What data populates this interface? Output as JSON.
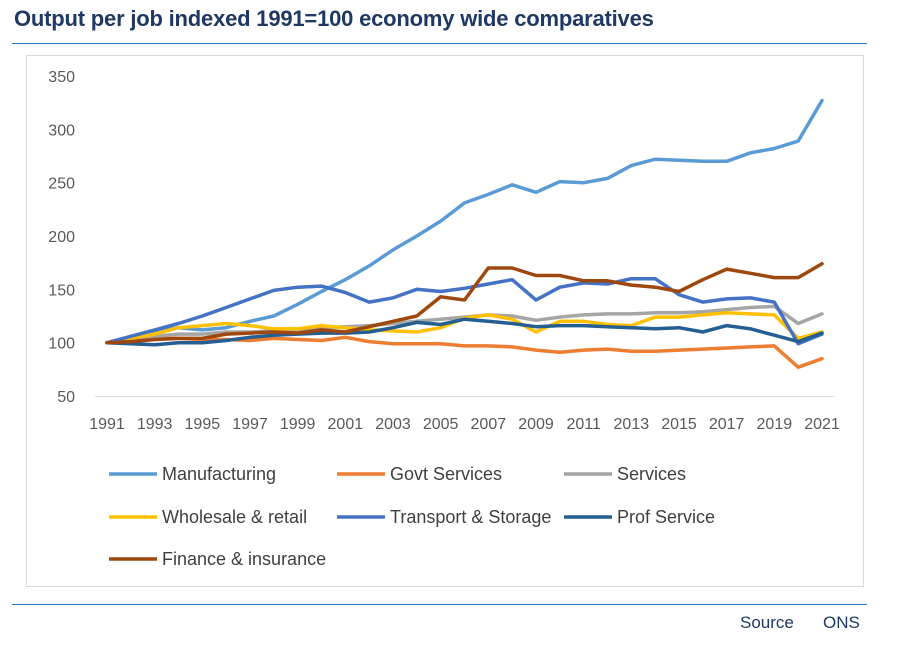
{
  "page": {
    "title": "Output per job indexed 1991=100 economy wide comparatives",
    "source_label": "Source",
    "source_value": "ONS"
  },
  "chart_data": {
    "type": "line",
    "title": "",
    "xlabel": "",
    "ylabel": "",
    "x": [
      1991,
      1992,
      1993,
      1994,
      1995,
      1996,
      1997,
      1998,
      1999,
      2000,
      2001,
      2002,
      2003,
      2004,
      2005,
      2006,
      2007,
      2008,
      2009,
      2010,
      2011,
      2012,
      2013,
      2014,
      2015,
      2016,
      2017,
      2018,
      2019,
      2020,
      2021
    ],
    "x_tick_labels": [
      "1991",
      "1993",
      "1995",
      "1997",
      "1999",
      "2001",
      "2003",
      "2005",
      "2007",
      "2009",
      "2011",
      "2013",
      "2015",
      "2017",
      "2019",
      "2021"
    ],
    "ylim": [
      50,
      350
    ],
    "y_ticks": [
      50,
      100,
      150,
      200,
      250,
      300,
      350
    ],
    "grid": false,
    "legend_position": "bottom",
    "series": [
      {
        "name": "Manufacturing",
        "color": "#5b9bd5",
        "values": [
          100,
          105,
          110,
          114,
          112,
          114,
          120,
          125,
          136,
          148,
          159,
          172,
          187,
          200,
          214,
          231,
          239,
          248,
          241,
          251,
          250,
          254,
          266,
          272,
          271,
          270,
          270,
          278,
          282,
          289,
          327
        ]
      },
      {
        "name": "Govt Services",
        "color": "#ed7d31",
        "values": [
          100,
          102,
          104,
          104,
          103,
          103,
          102,
          104,
          103,
          102,
          105,
          101,
          99,
          99,
          99,
          97,
          97,
          96,
          93,
          91,
          93,
          94,
          92,
          92,
          93,
          94,
          95,
          96,
          97,
          77,
          85
        ]
      },
      {
        "name": "Services",
        "color": "#a5a5a5",
        "values": [
          100,
          103,
          106,
          108,
          108,
          110,
          110,
          111,
          112,
          114,
          115,
          116,
          118,
          120,
          122,
          124,
          126,
          125,
          121,
          124,
          126,
          127,
          127,
          128,
          128,
          129,
          131,
          133,
          134,
          118,
          127
        ]
      },
      {
        "name": "Wholesale & retail",
        "color": "#ffc000",
        "values": [
          100,
          104,
          108,
          114,
          116,
          118,
          116,
          113,
          113,
          116,
          114,
          112,
          111,
          110,
          114,
          123,
          126,
          122,
          110,
          120,
          120,
          117,
          116,
          124,
          124,
          126,
          128,
          127,
          126,
          104,
          110
        ]
      },
      {
        "name": "Transport & Storage",
        "color": "#4472c4",
        "values": [
          100,
          106,
          112,
          118,
          125,
          133,
          141,
          149,
          152,
          153,
          147,
          138,
          142,
          150,
          148,
          151,
          155,
          159,
          140,
          152,
          156,
          155,
          160,
          160,
          145,
          138,
          141,
          142,
          138,
          99,
          108
        ]
      },
      {
        "name": "Prof Service",
        "color": "#255e91",
        "values": [
          100,
          99,
          98,
          100,
          100,
          102,
          105,
          107,
          108,
          109,
          109,
          110,
          114,
          119,
          117,
          122,
          120,
          118,
          115,
          116,
          116,
          115,
          114,
          113,
          114,
          110,
          116,
          113,
          107,
          101,
          109
        ]
      },
      {
        "name": "Finance & insurance",
        "color": "#9e480e",
        "values": [
          100,
          101,
          103,
          104,
          104,
          108,
          109,
          110,
          109,
          112,
          110,
          115,
          120,
          125,
          143,
          140,
          170,
          170,
          163,
          163,
          158,
          158,
          154,
          152,
          148,
          159,
          169,
          165,
          161,
          161,
          174
        ]
      }
    ]
  }
}
